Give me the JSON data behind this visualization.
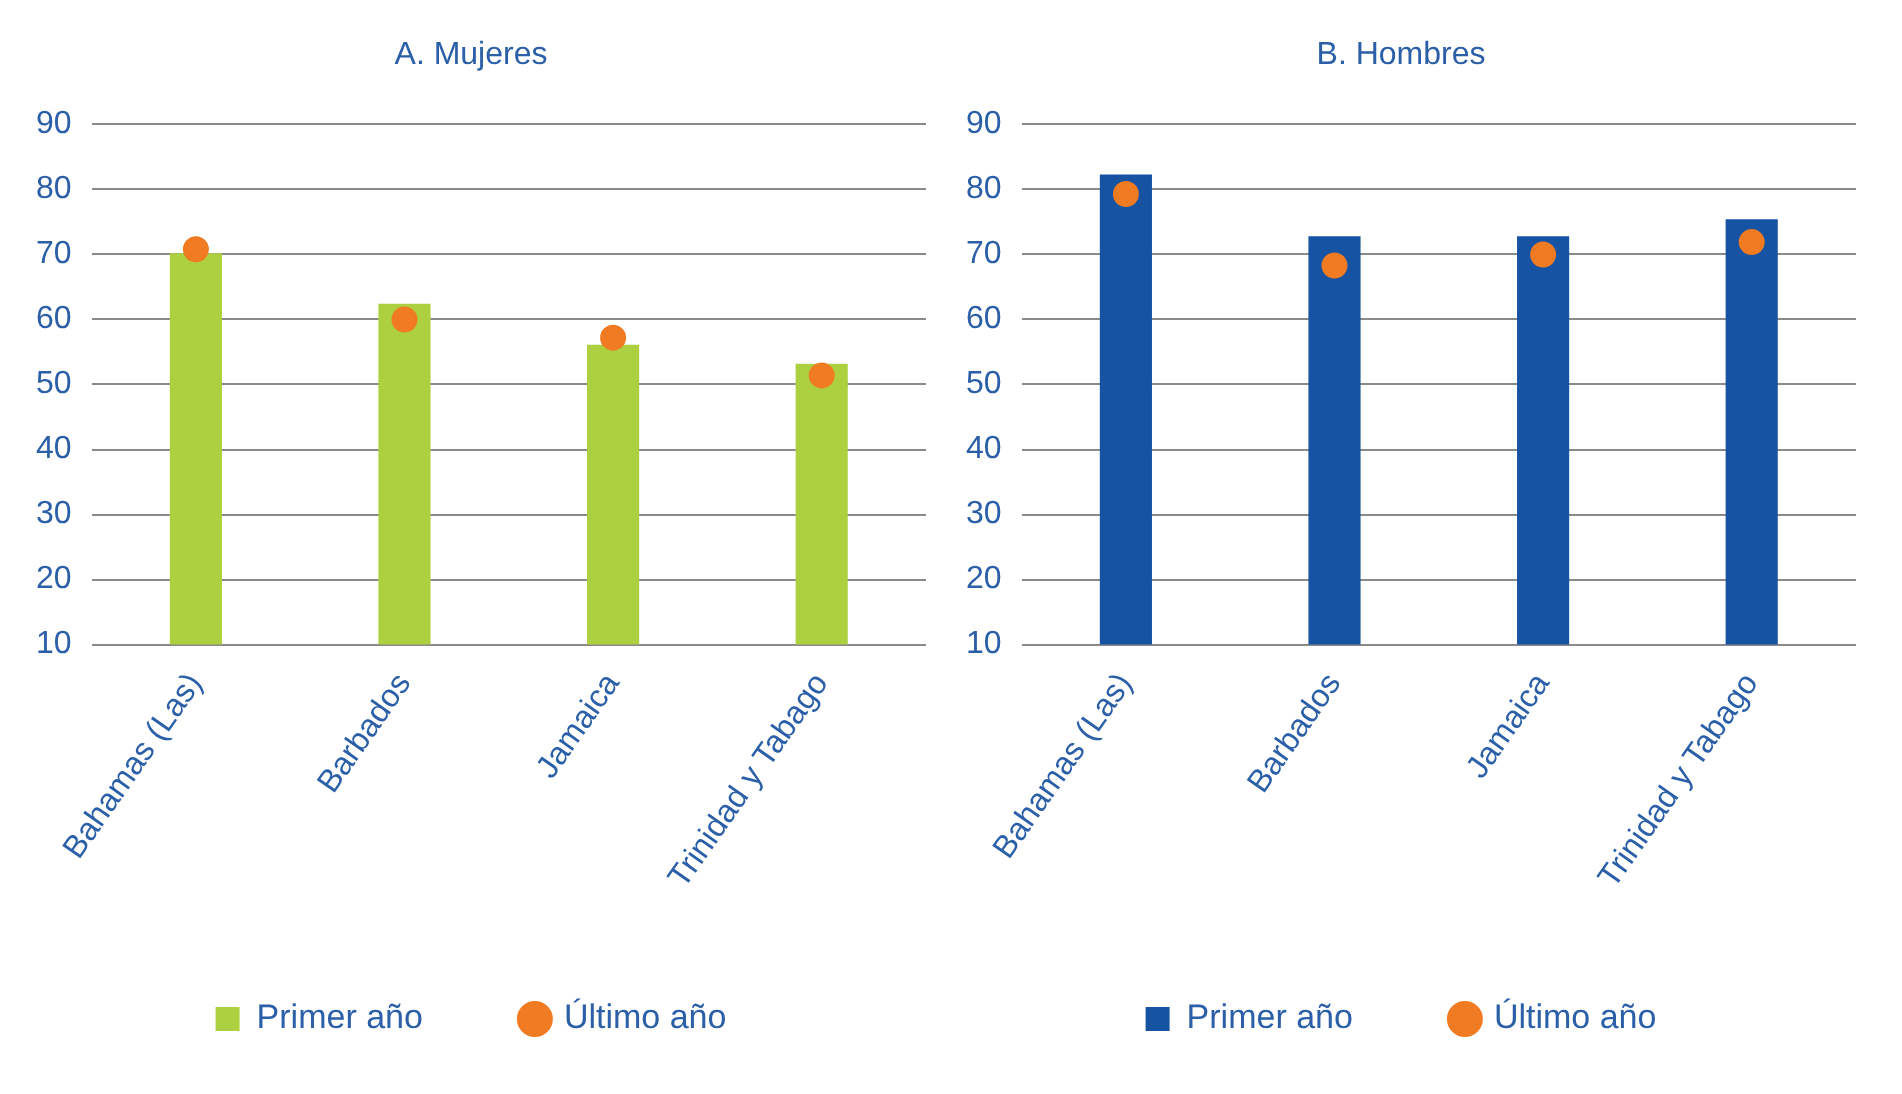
{
  "chart_data": [
    {
      "type": "bar",
      "title": "A. Mujeres",
      "categories": [
        "Bahamas (Las)",
        "Barbados",
        "Jamaica",
        "Trinidad y Tabago"
      ],
      "ylim": [
        10,
        90
      ],
      "yticks": [
        10,
        20,
        30,
        40,
        50,
        60,
        70,
        80,
        90
      ],
      "grid": "y",
      "legend": "bottom",
      "series": [
        {
          "name": "Primer año",
          "color": "#acd040",
          "values": [
            70.2,
            62.4,
            56.1,
            53.2
          ]
        },
        {
          "name": "Último año",
          "type": "scatter",
          "marker": "circle",
          "color": "#f07b22",
          "values": [
            70.8,
            60,
            57.2,
            51.4
          ]
        }
      ]
    },
    {
      "type": "bar",
      "title": "B. Hombres",
      "categories": [
        "Bahamas (Las)",
        "Barbados",
        "Jamaica",
        "Trinidad y Tabago"
      ],
      "ylim": [
        10,
        90
      ],
      "yticks": [
        10,
        20,
        30,
        40,
        50,
        60,
        70,
        80,
        90
      ],
      "grid": "y",
      "legend": "bottom",
      "series": [
        {
          "name": "Primer año",
          "color": "#1653a2",
          "values": [
            82.3,
            72.8,
            72.8,
            75.4
          ]
        },
        {
          "name": "Último año",
          "type": "scatter",
          "marker": "circle",
          "color": "#f07b22",
          "values": [
            79.3,
            68.3,
            70,
            71.9
          ]
        }
      ]
    }
  ]
}
